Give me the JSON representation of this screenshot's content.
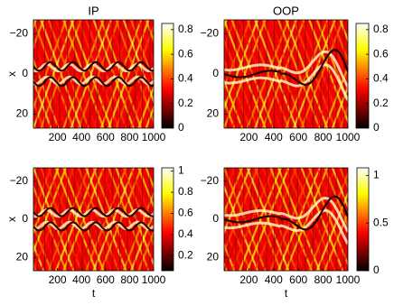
{
  "chart_data": [
    {
      "type": "heatmap",
      "title": "IP",
      "ylabel": "x",
      "colormap": "hot",
      "xlim": [
        0,
        1000
      ],
      "xticks": [
        200,
        400,
        600,
        800,
        1000
      ],
      "ylim": [
        -27,
        27
      ],
      "y_reversed": true,
      "yticks": [
        {
          "value": -20,
          "label": "−20"
        },
        0,
        20
      ],
      "zlim": [
        0,
        0.85
      ],
      "zticks": [
        0,
        0.2,
        0.4,
        0.6,
        0.8
      ]
    },
    {
      "type": "heatmap",
      "title": "OOP",
      "colormap": "hot",
      "xlim": [
        0,
        1000
      ],
      "xticks": [
        200,
        400,
        600,
        800,
        1000
      ],
      "ylim": [
        -27,
        27
      ],
      "y_reversed": true,
      "yticks": [
        {
          "value": -20,
          "label": "−20"
        },
        0,
        20
      ],
      "zlim": [
        0,
        0.85
      ],
      "zticks": [
        0,
        0.2,
        0.4,
        0.6,
        0.8
      ]
    },
    {
      "type": "heatmap",
      "xlabel": "t",
      "ylabel": "x",
      "colormap": "hot",
      "xlim": [
        0,
        1000
      ],
      "xticks": [
        200,
        400,
        600,
        800,
        1000
      ],
      "ylim": [
        -27,
        27
      ],
      "y_reversed": true,
      "yticks": [
        {
          "value": -20,
          "label": "−20"
        },
        0,
        20
      ],
      "zlim": [
        0.06,
        1.03
      ],
      "zticks": [
        0.2,
        0.4,
        0.6,
        0.8,
        1
      ]
    },
    {
      "type": "heatmap",
      "xlabel": "t",
      "colormap": "hot",
      "xlim": [
        0,
        1000
      ],
      "xticks": [
        200,
        400,
        600,
        800,
        1000
      ],
      "ylim": [
        -27,
        27
      ],
      "y_reversed": true,
      "yticks": [
        {
          "value": -20,
          "label": "−20"
        },
        0,
        20
      ],
      "zlim": [
        0,
        1.08
      ],
      "zticks": [
        0,
        0.5,
        1
      ]
    }
  ]
}
